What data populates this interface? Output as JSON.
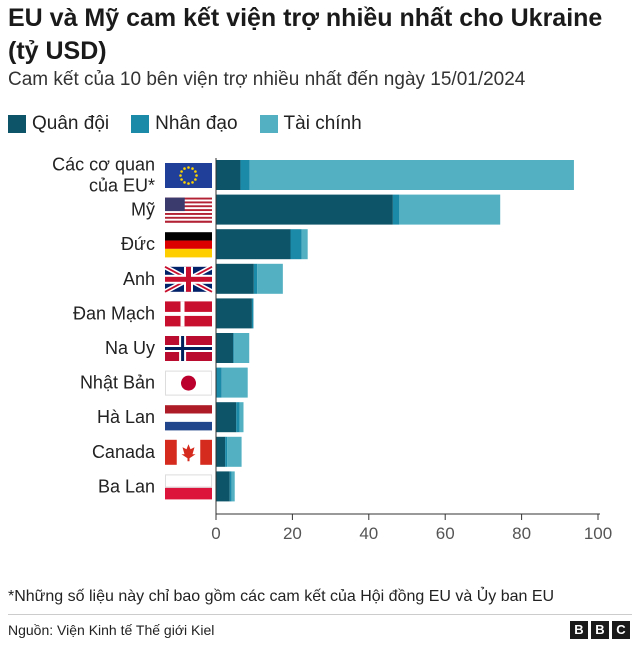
{
  "header": {
    "title": "EU và Mỹ cam kết viện trợ nhiều nhất cho Ukraine (tỷ USD)",
    "subtitle": "Cam kết của 10 bên viện trợ nhiều nhất đến ngày 15/01/2024"
  },
  "colors": {
    "military": "#0d5468",
    "humanitarian": "#1a8aa8",
    "financial": "#52b0c2"
  },
  "legend": [
    {
      "label": "Quân đội",
      "color": "#0d5468"
    },
    {
      "label": "Nhân đạo",
      "color": "#1a8aa8"
    },
    {
      "label": "Tài chính",
      "color": "#52b0c2"
    }
  ],
  "chart_data": {
    "type": "bar",
    "orientation": "horizontal",
    "stacked": true,
    "title": "EU và Mỹ cam kết viện trợ nhiều nhất cho Ukraine (tỷ USD)",
    "subtitle": "Cam kết của 10 bên viện trợ nhiều nhất đến ngày 15/01/2024",
    "categories": [
      [
        "Các cơ quan",
        "của EU*"
      ],
      [
        "Mỹ"
      ],
      [
        "Đức"
      ],
      [
        "Anh"
      ],
      [
        "Đan Mạch"
      ],
      [
        "Na Uy"
      ],
      [
        "Nhật Bản"
      ],
      [
        "Hà Lan"
      ],
      [
        "Canada"
      ],
      [
        "Ba Lan"
      ]
    ],
    "flags": [
      "eu",
      "us",
      "de",
      "gb",
      "dk",
      "no",
      "jp",
      "nl",
      "ca",
      "pl"
    ],
    "series": [
      {
        "name": "Quân đội",
        "values": [
          6.4,
          46.3,
          19.5,
          9.9,
          9.4,
          4.5,
          0.0,
          5.3,
          2.4,
          3.6
        ]
      },
      {
        "name": "Nhân đạo",
        "values": [
          2.4,
          1.7,
          2.9,
          0.9,
          0.4,
          0.3,
          1.5,
          0.9,
          0.5,
          0.5
        ]
      },
      {
        "name": "Tài chính",
        "values": [
          84.9,
          26.4,
          1.6,
          6.7,
          0.0,
          3.9,
          6.8,
          1.0,
          3.8,
          0.8
        ]
      }
    ],
    "xlim": [
      0,
      100
    ],
    "xticks": [
      0,
      20,
      40,
      60,
      80,
      100
    ],
    "grid": false,
    "legend_position": "top-left"
  },
  "footer": {
    "footnote": "*Những số liệu này chỉ bao gồm các cam kết của Hội đồng EU và Ủy ban EU",
    "source": "Nguồn: Viện Kinh tế Thế giới Kiel",
    "logo_letters": [
      "B",
      "B",
      "C"
    ]
  }
}
